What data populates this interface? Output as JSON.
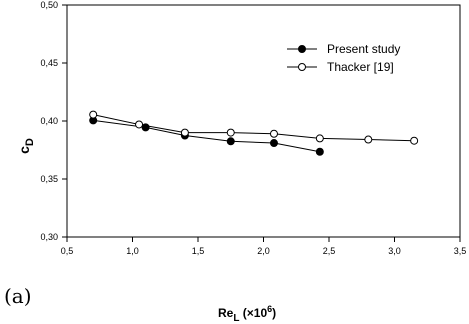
{
  "panel_label": "(a)",
  "chart_data": {
    "type": "line",
    "xlabel_main": "Re",
    "xlabel_sub": "L",
    "xlabel_suffix": " (×10",
    "xlabel_sup": "6",
    "xlabel_close": ")",
    "ylabel_main": "c",
    "ylabel_sub": "D",
    "xlim": [
      0.5,
      3.5
    ],
    "ylim": [
      0.3,
      0.5
    ],
    "x_ticks": [
      "0,5",
      "1,0",
      "1,5",
      "2,0",
      "2,5",
      "3,0",
      "3,5"
    ],
    "y_ticks": [
      "0,30",
      "0,35",
      "0,40",
      "0,45",
      "0,50"
    ],
    "grid": false,
    "legend_position": "top-right",
    "series": [
      {
        "name": "Present study",
        "marker": "filled-circle",
        "color": "#000000",
        "x": [
          0.7,
          1.1,
          1.4,
          1.75,
          2.08,
          2.43
        ],
        "y": [
          0.4005,
          0.3945,
          0.3875,
          0.3825,
          0.381,
          0.3735
        ]
      },
      {
        "name": "Thacker [19]",
        "marker": "open-circle",
        "color": "#000000",
        "x": [
          0.7,
          1.05,
          1.4,
          1.75,
          2.08,
          2.43,
          2.8,
          3.15
        ],
        "y": [
          0.4055,
          0.397,
          0.39,
          0.39,
          0.389,
          0.385,
          0.384,
          0.383
        ]
      }
    ]
  }
}
